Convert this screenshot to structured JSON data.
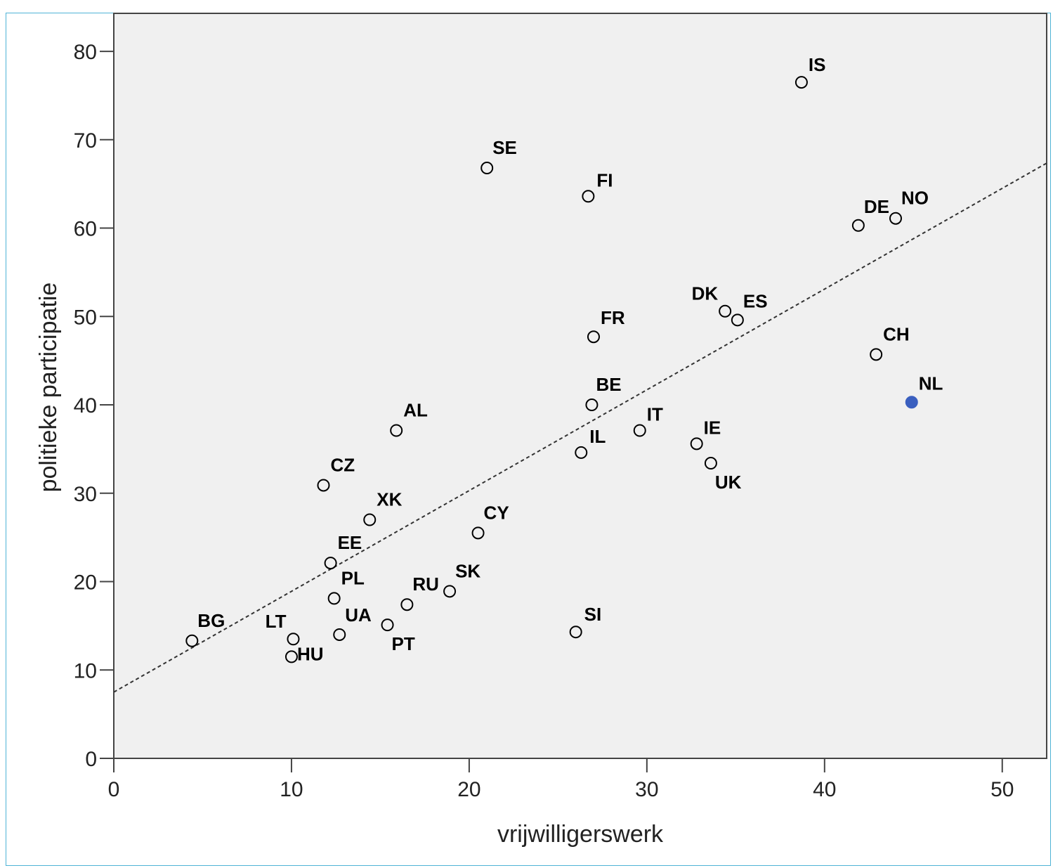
{
  "chart_data": {
    "type": "scatter",
    "title": "",
    "xlabel": "vrijwilligerswerk",
    "ylabel": "politieke participatie",
    "xlim": [
      0,
      52.5
    ],
    "ylim": [
      0,
      84.3
    ],
    "x_ticks": [
      "0",
      "10",
      "20",
      "30",
      "40",
      "50"
    ],
    "y_ticks": [
      "0",
      "10",
      "20",
      "30",
      "40",
      "50",
      "60",
      "70",
      "80"
    ],
    "grid": false,
    "plot_background": "#f0f0f0",
    "point_color": "#000000",
    "highlight_color": "#3a5fbf",
    "points": [
      {
        "label": "IS",
        "x": 38.7,
        "y": 76.5
      },
      {
        "label": "SE",
        "x": 21.0,
        "y": 66.8
      },
      {
        "label": "FI",
        "x": 26.7,
        "y": 63.6
      },
      {
        "label": "DE",
        "x": 41.9,
        "y": 60.3
      },
      {
        "label": "NO",
        "x": 44.0,
        "y": 61.1
      },
      {
        "label": "DK",
        "x": 34.4,
        "y": 50.6
      },
      {
        "label": "ES",
        "x": 35.1,
        "y": 49.6
      },
      {
        "label": "FR",
        "x": 27.0,
        "y": 47.7
      },
      {
        "label": "CH",
        "x": 42.9,
        "y": 45.7
      },
      {
        "label": "NL",
        "x": 44.9,
        "y": 40.3,
        "highlight": true
      },
      {
        "label": "BE",
        "x": 26.9,
        "y": 40.0
      },
      {
        "label": "AL",
        "x": 15.9,
        "y": 37.1
      },
      {
        "label": "IT",
        "x": 29.6,
        "y": 37.1
      },
      {
        "label": "IE",
        "x": 32.8,
        "y": 35.6
      },
      {
        "label": "IL",
        "x": 26.3,
        "y": 34.6
      },
      {
        "label": "UK",
        "x": 33.6,
        "y": 33.4
      },
      {
        "label": "CZ",
        "x": 11.8,
        "y": 30.9
      },
      {
        "label": "XK",
        "x": 14.4,
        "y": 27.0
      },
      {
        "label": "CY",
        "x": 20.5,
        "y": 25.5
      },
      {
        "label": "EE",
        "x": 12.2,
        "y": 22.1
      },
      {
        "label": "SK",
        "x": 18.9,
        "y": 18.9
      },
      {
        "label": "PL",
        "x": 12.4,
        "y": 18.1
      },
      {
        "label": "RU",
        "x": 16.5,
        "y": 17.4
      },
      {
        "label": "PT",
        "x": 15.4,
        "y": 15.1
      },
      {
        "label": "UA",
        "x": 12.7,
        "y": 14.0
      },
      {
        "label": "SI",
        "x": 26.0,
        "y": 14.3
      },
      {
        "label": "BG",
        "x": 4.4,
        "y": 13.3
      },
      {
        "label": "LT",
        "x": 10.1,
        "y": 13.5
      },
      {
        "label": "HU",
        "x": 10.0,
        "y": 11.5
      }
    ],
    "trendline": {
      "intercept": 7.5,
      "slope": 1.14
    }
  }
}
